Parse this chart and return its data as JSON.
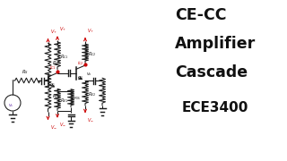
{
  "bg_color": "#ffffff",
  "title_lines": [
    "CE-CC",
    "Amplifier",
    "Cascade"
  ],
  "subtitle": "ECE3400",
  "text_color": "#111111",
  "red_color": "#cc0000",
  "line_color": "#1a1a1a",
  "title_fontsize": 12.5,
  "subtitle_fontsize": 11,
  "fig_width": 3.2,
  "fig_height": 1.8,
  "dpi": 100
}
